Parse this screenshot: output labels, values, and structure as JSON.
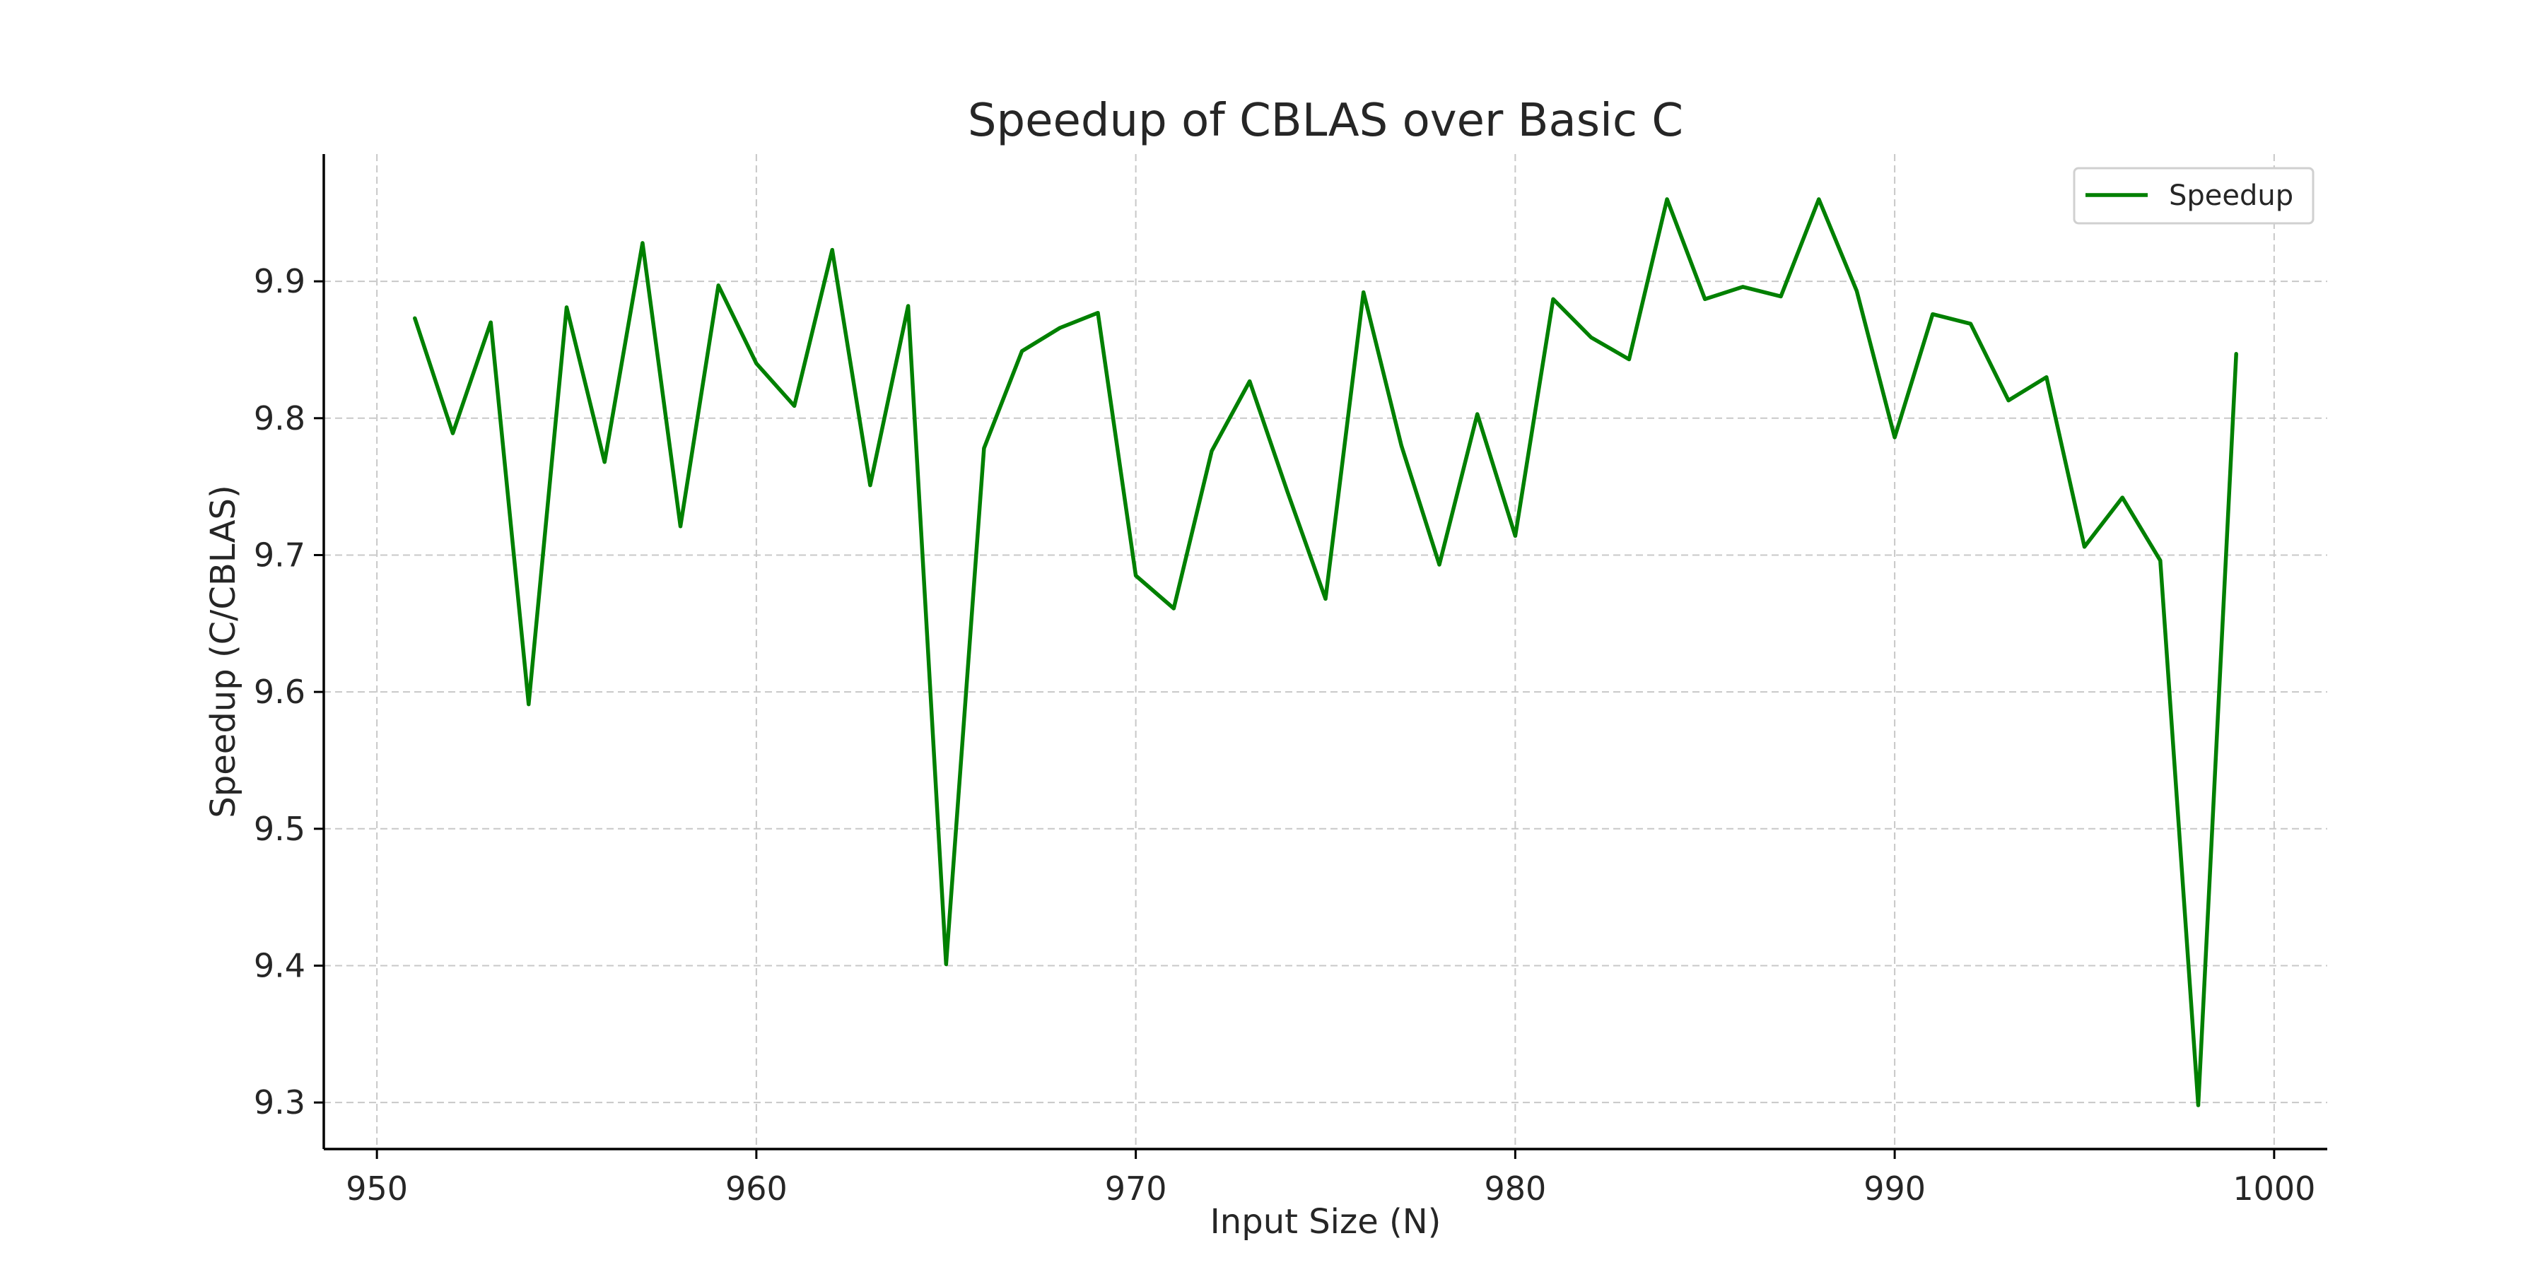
{
  "chart_data": {
    "type": "line",
    "title": "Speedup of CBLAS over Basic C",
    "xlabel": "Input Size (N)",
    "ylabel": "Speedup (C/CBLAS)",
    "xlim": [
      948.6,
      1001.4
    ],
    "ylim": [
      9.266,
      9.993
    ],
    "xticks": [
      950,
      960,
      970,
      980,
      990,
      1000
    ],
    "yticks": [
      9.3,
      9.4,
      9.5,
      9.6,
      9.7,
      9.8,
      9.9
    ],
    "xtick_labels": [
      "950",
      "960",
      "970",
      "980",
      "990",
      "1000"
    ],
    "ytick_labels": [
      "9.3",
      "9.4",
      "9.5",
      "9.6",
      "9.7",
      "9.8",
      "9.9"
    ],
    "grid": true,
    "legend_position": "top-right",
    "series": [
      {
        "name": "Speedup",
        "color": "#008000",
        "x": [
          951,
          952,
          953,
          954,
          955,
          956,
          957,
          958,
          959,
          960,
          961,
          962,
          963,
          964,
          965,
          966,
          967,
          968,
          969,
          970,
          971,
          972,
          973,
          974,
          975,
          976,
          977,
          978,
          979,
          980,
          981,
          982,
          983,
          984,
          985,
          986,
          987,
          988,
          989,
          990,
          991,
          992,
          993,
          994,
          995,
          996,
          997,
          998,
          999
        ],
        "y": [
          9.873,
          9.789,
          9.87,
          9.591,
          9.881,
          9.768,
          9.928,
          9.721,
          9.897,
          9.84,
          9.809,
          9.923,
          9.751,
          9.882,
          9.401,
          9.778,
          9.849,
          9.866,
          9.877,
          9.685,
          9.661,
          9.776,
          9.827,
          9.746,
          9.668,
          9.892,
          9.78,
          9.693,
          9.803,
          9.714,
          9.887,
          9.859,
          9.843,
          9.96,
          9.887,
          9.896,
          9.889,
          9.96,
          9.893,
          9.786,
          9.876,
          9.869,
          9.813,
          9.83,
          9.706,
          9.742,
          9.696,
          9.298,
          9.847
        ]
      }
    ]
  }
}
